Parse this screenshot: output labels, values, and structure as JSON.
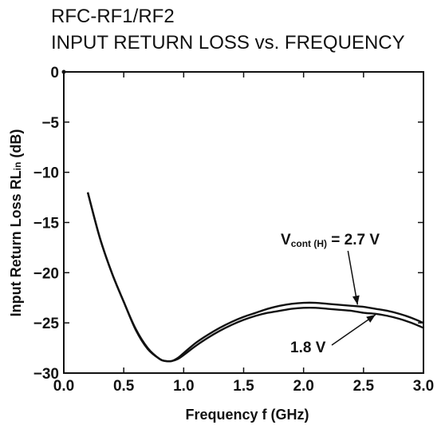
{
  "chart_data": {
    "type": "line",
    "title": "RFC-RF1/RF2",
    "subtitle": "INPUT RETURN LOSS vs. FREQUENCY",
    "xlabel": "Frequency  f (GHz)",
    "ylabel_main": "Input Return Loss  RL",
    "ylabel_sub": "in",
    "ylabel_unit": " (dB)",
    "xlim": [
      0.0,
      3.0
    ],
    "ylim": [
      -30,
      0
    ],
    "xticks": [
      "0.0",
      "0.5",
      "1.0",
      "1.5",
      "2.0",
      "2.5",
      "3.0"
    ],
    "yticks": [
      "0",
      "−5",
      "−10",
      "−15",
      "−20",
      "−25",
      "−30"
    ],
    "grid": false,
    "series": [
      {
        "name": "Vcont (H) = 2.7 V",
        "x": [
          0.2,
          0.3,
          0.4,
          0.5,
          0.6,
          0.7,
          0.8,
          0.85,
          0.9,
          0.95,
          1.0,
          1.1,
          1.2,
          1.3,
          1.4,
          1.5,
          1.6,
          1.7,
          1.8,
          1.9,
          2.0,
          2.1,
          2.2,
          2.3,
          2.4,
          2.5,
          2.6,
          2.7,
          2.8,
          2.9,
          3.0
        ],
        "y": [
          -12.0,
          -16.5,
          -20.0,
          -22.9,
          -25.6,
          -27.5,
          -28.6,
          -28.8,
          -28.8,
          -28.5,
          -28.0,
          -27.0,
          -26.2,
          -25.5,
          -24.9,
          -24.4,
          -24.0,
          -23.6,
          -23.3,
          -23.1,
          -23.0,
          -23.0,
          -23.1,
          -23.2,
          -23.3,
          -23.4,
          -23.6,
          -23.8,
          -24.1,
          -24.5,
          -25.0
        ]
      },
      {
        "name": "1.8 V",
        "x": [
          0.2,
          0.3,
          0.4,
          0.5,
          0.6,
          0.7,
          0.8,
          0.85,
          0.9,
          0.95,
          1.0,
          1.1,
          1.2,
          1.3,
          1.4,
          1.5,
          1.6,
          1.7,
          1.8,
          1.9,
          2.0,
          2.1,
          2.2,
          2.3,
          2.4,
          2.5,
          2.6,
          2.7,
          2.8,
          2.9,
          3.0
        ],
        "y": [
          -12.0,
          -16.5,
          -20.0,
          -22.9,
          -25.7,
          -27.6,
          -28.6,
          -28.8,
          -28.8,
          -28.6,
          -28.2,
          -27.3,
          -26.5,
          -25.8,
          -25.2,
          -24.7,
          -24.3,
          -24.0,
          -23.8,
          -23.6,
          -23.5,
          -23.5,
          -23.6,
          -23.7,
          -23.8,
          -24.0,
          -24.1,
          -24.3,
          -24.6,
          -25.0,
          -25.5
        ]
      }
    ],
    "annotations": [
      {
        "text_main": "V",
        "text_sub": "cont (H)",
        "text_rest": " = 2.7 V",
        "target_series": 0,
        "target_x": 2.45
      },
      {
        "text": "1.8 V",
        "target_series": 1,
        "target_x": 2.6
      }
    ]
  }
}
